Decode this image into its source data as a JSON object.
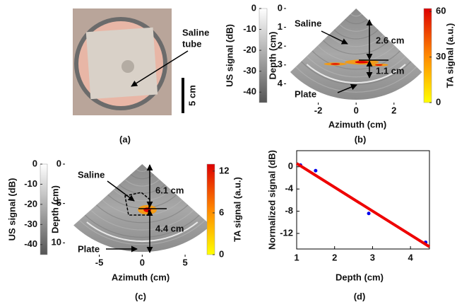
{
  "chart_data": [
    {
      "type": "photo",
      "panel_label": "(a)",
      "annotation": [
        "Saline",
        "tube"
      ],
      "scale_label": "5 cm"
    },
    {
      "type": "ultrasound",
      "panel_label": "(b)",
      "xlabel": "Azimuth (cm)",
      "ylabel": "Depth (cm)",
      "xlim": [
        -3.7,
        3.5
      ],
      "xticks": [
        -2,
        0,
        2
      ],
      "ylim": [
        0,
        5
      ],
      "yticks": [
        0,
        1,
        2,
        3,
        4
      ],
      "colorbars": [
        {
          "label": "US signal (dB)",
          "lim": [
            -45,
            0
          ],
          "ticks": [
            0,
            -10,
            -20,
            -30,
            -40
          ],
          "colors": [
            "#555555",
            "#ffffff"
          ]
        },
        {
          "label": "TA signal (a.u.)",
          "lim": [
            0,
            62
          ],
          "ticks": [
            0,
            30,
            60
          ],
          "colors": [
            "#ffff00",
            "#ff8800",
            "#dd0000"
          ]
        }
      ],
      "annotations": [
        "Saline",
        "2.6 cm",
        "1.1 cm",
        "Plate"
      ]
    },
    {
      "type": "ultrasound",
      "panel_label": "(c)",
      "xlabel": "Azimuth (cm)",
      "ylabel": "Depth (cm)",
      "xlim": [
        -9,
        7.3
      ],
      "xticks": [
        -5,
        0,
        5
      ],
      "ylim": [
        0,
        11.5
      ],
      "yticks": [
        0,
        5,
        10
      ],
      "colorbars": [
        {
          "label": "US signal (dB)",
          "lim": [
            -45,
            0
          ],
          "ticks": [
            0,
            -10,
            -20,
            -30,
            -40
          ],
          "colors": [
            "#555555",
            "#ffffff"
          ]
        },
        {
          "label": "TA signal (a.u.)",
          "lim": [
            0,
            13
          ],
          "ticks": [
            0,
            6,
            12
          ],
          "colors": [
            "#ffff00",
            "#ff8800",
            "#dd0000"
          ]
        }
      ],
      "annotations": [
        "Saline",
        "6.1 cm",
        "4.4 cm",
        "Plate"
      ]
    },
    {
      "type": "scatter",
      "panel_label": "(d)",
      "xlabel": "Depth (cm)",
      "ylabel": "Normalized signal (dB)",
      "xlim": [
        1,
        4.5
      ],
      "xticks": [
        1,
        2,
        3,
        4
      ],
      "ylim": [
        -14.8,
        2.9
      ],
      "yticks": [
        0,
        -4,
        -8,
        -12
      ],
      "series": [
        {
          "style": "markers",
          "color": "#0000ee",
          "x": [
            1.1,
            1.5,
            2.9,
            4.4
          ],
          "values": [
            0.3,
            -0.7,
            -8.4,
            -13.6
          ]
        },
        {
          "style": "line",
          "color": "#ee0000",
          "x": [
            1,
            4.5
          ],
          "values": [
            0.6,
            -14.4
          ]
        }
      ]
    }
  ]
}
